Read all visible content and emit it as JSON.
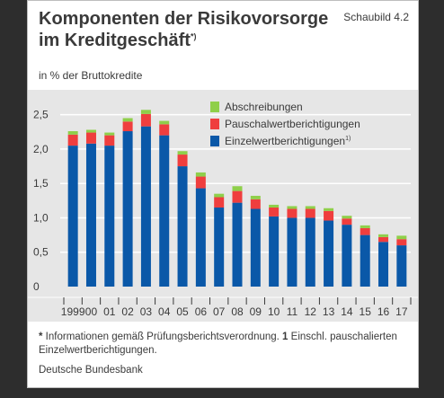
{
  "figure": {
    "title_line1": "Komponenten der Risikovorsorge",
    "title_line2": "im Kreditgeschäft",
    "title_mark": "*)",
    "label": "Schaubild 4.2",
    "unit": "in % der Bruttokredite",
    "footnote_mark1": "*",
    "footnote_text1": " Informationen gemäß Prüfungsberichtsverordnung. ",
    "footnote_mark2": "1",
    "footnote_text2": " Einschl. pauschalierten Einzelwertberichtigungen.",
    "source": "Deutsche Bundesbank"
  },
  "colors": {
    "background": "#2d2d2d",
    "plot_background": "#e6e6e6",
    "gridline": "#ffffff",
    "einzel": "#0a58a8",
    "pauschal": "#ef3e3e",
    "abschreibungen": "#8fcf4a"
  },
  "chart_data": {
    "type": "bar",
    "stacked": true,
    "categories": [
      "1999",
      "00",
      "01",
      "02",
      "03",
      "04",
      "05",
      "06",
      "07",
      "08",
      "09",
      "10",
      "11",
      "12",
      "13",
      "14",
      "15",
      "16",
      "17"
    ],
    "series": [
      {
        "name": "Einzelwertberichtigungen",
        "mark": "1)",
        "color": "#0a58a8",
        "values": [
          2.05,
          2.08,
          2.05,
          2.26,
          2.33,
          2.2,
          1.75,
          1.43,
          1.15,
          1.22,
          1.13,
          1.02,
          1.0,
          1.0,
          0.96,
          0.9,
          0.75,
          0.65,
          0.6
        ]
      },
      {
        "name": "Pauschalwertberichtigungen",
        "color": "#ef3e3e",
        "values": [
          0.16,
          0.16,
          0.15,
          0.14,
          0.18,
          0.16,
          0.17,
          0.17,
          0.15,
          0.17,
          0.14,
          0.13,
          0.13,
          0.13,
          0.14,
          0.09,
          0.1,
          0.07,
          0.09
        ]
      },
      {
        "name": "Abschreibungen",
        "color": "#8fcf4a",
        "values": [
          0.05,
          0.04,
          0.04,
          0.05,
          0.06,
          0.05,
          0.05,
          0.06,
          0.05,
          0.07,
          0.05,
          0.04,
          0.04,
          0.04,
          0.04,
          0.04,
          0.04,
          0.04,
          0.05
        ]
      }
    ],
    "legend_order": [
      "Abschreibungen",
      "Pauschalwertberichtigungen",
      "Einzelwertberichtigungen"
    ],
    "legend_position": "top-right",
    "y_ticks": [
      "0",
      "0,5",
      "1,0",
      "1,5",
      "2,0",
      "2,5"
    ],
    "y_tick_values": [
      0,
      0.5,
      1.0,
      1.5,
      2.0,
      2.5
    ],
    "ylim": [
      0,
      2.6
    ],
    "grid": true
  }
}
